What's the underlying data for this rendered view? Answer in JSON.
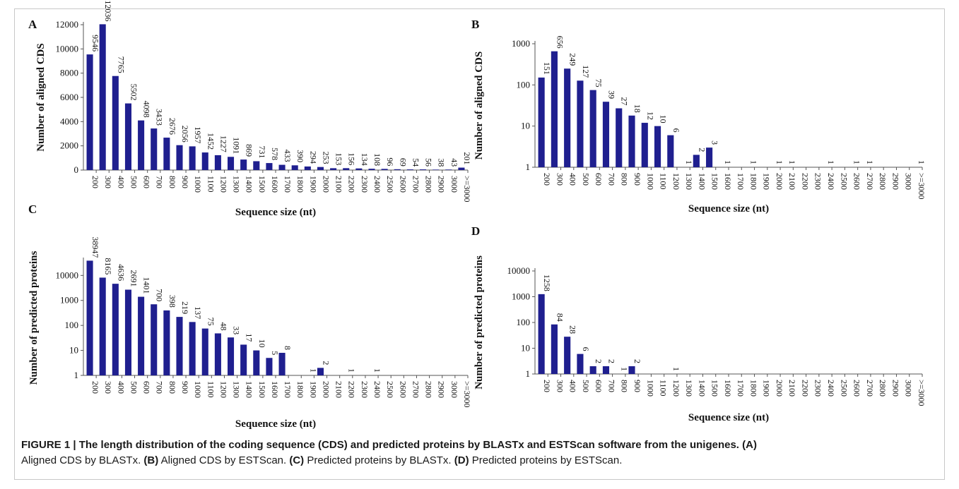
{
  "figure": {
    "caption_heading": "FIGURE 1 | The length distribution of the coding sequence (CDS) and predicted proteins by BLASTx and ESTScan software from the unigenes. (A)",
    "caption_parts": [
      {
        "t": "Aligned CDS by BLASTx. ",
        "b": false
      },
      {
        "t": "(B)",
        "b": true
      },
      {
        "t": " Aligned CDS by ESTScan. ",
        "b": false
      },
      {
        "t": "(C)",
        "b": true
      },
      {
        "t": " Predicted proteins by BLASTx. ",
        "b": false
      },
      {
        "t": "(D)",
        "b": true
      },
      {
        "t": " Predicted proteins by ESTScan.",
        "b": false
      }
    ]
  },
  "colors": {
    "bar": "#1f1f8f",
    "axis": "#555555",
    "text": "#111111"
  },
  "chart_data": [
    {
      "panel": "A",
      "type": "bar",
      "scale": "linear",
      "ylabel": "Number of aligned CDS",
      "xlabel": "Sequence size (nt)",
      "ylim": [
        0,
        12000
      ],
      "yticks": [
        0,
        2000,
        4000,
        6000,
        8000,
        10000,
        12000
      ],
      "categories": [
        "200",
        "300",
        "400",
        "500",
        "600",
        "700",
        "800",
        "900",
        "1000",
        "1100",
        "1200",
        "1300",
        "1400",
        "1500",
        "1600",
        "1700",
        "1800",
        "1900",
        "2000",
        "2100",
        "2200",
        "2300",
        "2400",
        "2500",
        "2600",
        "2700",
        "2800",
        "2900",
        "3000",
        ">=3000"
      ],
      "values": [
        9546,
        12036,
        7765,
        5502,
        4098,
        3433,
        2676,
        2056,
        1957,
        1452,
        1227,
        1091,
        869,
        731,
        578,
        433,
        390,
        294,
        253,
        153,
        156,
        134,
        108,
        96,
        69,
        54,
        56,
        38,
        43,
        201
      ],
      "grid": false,
      "legend": "none"
    },
    {
      "panel": "B",
      "type": "bar",
      "scale": "log",
      "ylabel": "Number of aligned CDS",
      "xlabel": "Sequence size (nt)",
      "ylim": [
        1,
        1000
      ],
      "yticks": [
        1,
        10,
        100,
        1000
      ],
      "categories": [
        "200",
        "300",
        "400",
        "500",
        "600",
        "700",
        "800",
        "900",
        "1000",
        "1100",
        "1200",
        "1300",
        "1400",
        "1500",
        "1600",
        "1700",
        "1800",
        "1900",
        "2000",
        "2100",
        "2200",
        "2300",
        "2400",
        "2500",
        "2600",
        "2700",
        "2800",
        "2900",
        "3000",
        ">=3000"
      ],
      "values": [
        151,
        656,
        249,
        127,
        75,
        39,
        27,
        18,
        12,
        10,
        6,
        1,
        2,
        3,
        1,
        null,
        1,
        null,
        1,
        1,
        null,
        null,
        1,
        null,
        1,
        1,
        null,
        null,
        null,
        1
      ],
      "grid": false,
      "legend": "none"
    },
    {
      "panel": "C",
      "type": "bar",
      "scale": "log",
      "ylabel": "Number of predicted proteins",
      "xlabel": "Sequence size (nt)",
      "ylim": [
        1,
        40000
      ],
      "yticks": [
        1,
        10,
        100,
        1000,
        10000
      ],
      "categories": [
        "200",
        "300",
        "400",
        "500",
        "600",
        "700",
        "800",
        "900",
        "1000",
        "1100",
        "1200",
        "1300",
        "1400",
        "1500",
        "1600",
        "1700",
        "1800",
        "1900",
        "2000",
        "2100",
        "2200",
        "2300",
        "2400",
        "2500",
        "2600",
        "2700",
        "2800",
        "2900",
        "3000",
        ">=3000"
      ],
      "values": [
        38947,
        8165,
        4636,
        2691,
        1401,
        700,
        398,
        219,
        137,
        75,
        48,
        33,
        17,
        10,
        5,
        8,
        null,
        1,
        2,
        null,
        1,
        null,
        1,
        null,
        null,
        null,
        null,
        null,
        null,
        null
      ],
      "grid": false,
      "legend": "none"
    },
    {
      "panel": "D",
      "type": "bar",
      "scale": "log",
      "ylabel": "Number of predicted proteins",
      "xlabel": "Sequence size (nt)",
      "ylim": [
        1,
        10000
      ],
      "yticks": [
        1,
        10,
        100,
        1000,
        10000
      ],
      "categories": [
        "200",
        "300",
        "400",
        "500",
        "600",
        "700",
        "800",
        "900",
        "1000",
        "1100",
        "1200",
        "1300",
        "1400",
        "1500",
        "1600",
        "1700",
        "1800",
        "1900",
        "2000",
        "2100",
        "2200",
        "2300",
        "2400",
        "2500",
        "2600",
        "2700",
        "2800",
        "2900",
        "3000",
        ">=3000"
      ],
      "values": [
        1258,
        84,
        28,
        6,
        2,
        2,
        1,
        2,
        null,
        null,
        1,
        null,
        null,
        null,
        null,
        null,
        null,
        null,
        null,
        null,
        null,
        null,
        null,
        null,
        null,
        null,
        null,
        null,
        null,
        null
      ],
      "grid": false,
      "legend": "none"
    }
  ]
}
